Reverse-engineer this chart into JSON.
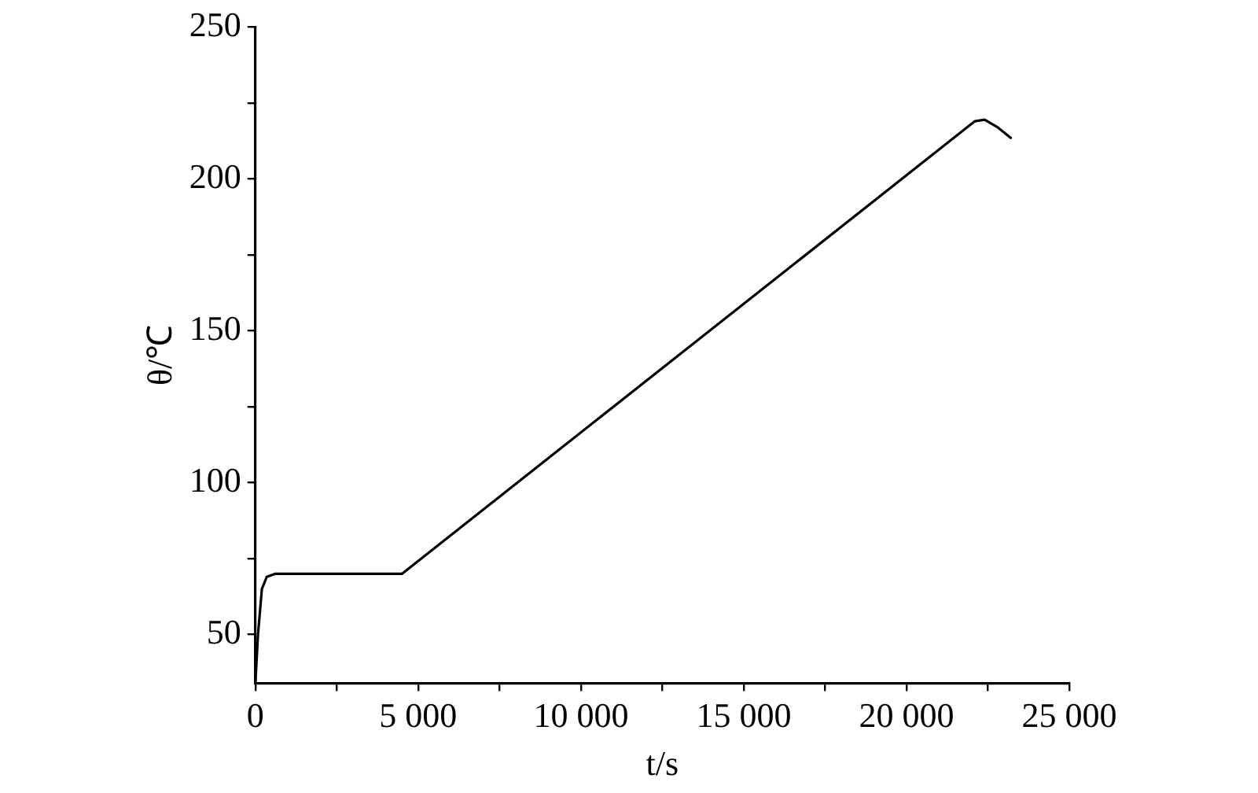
{
  "chart_data": {
    "type": "line",
    "xlabel": "t/s",
    "ylabel": "θ/℃",
    "x": [
      0,
      80,
      200,
      350,
      600,
      4500,
      22100,
      22400,
      22800,
      23200
    ],
    "series": [
      {
        "color": "#000000",
        "values": [
          34,
          50,
          65,
          69,
          70,
          70,
          219,
          219.5,
          217,
          213.5
        ]
      }
    ],
    "xlim": [
      0,
      25000
    ],
    "xticks": [
      0,
      {
        "value": 2500,
        "label": null
      },
      {
        "value": 5000,
        "label": "5 000"
      },
      {
        "value": 7500,
        "label": null
      },
      {
        "value": 10000,
        "label": "10 000"
      },
      {
        "value": 12500,
        "label": null
      },
      {
        "value": 15000,
        "label": "15 000"
      },
      {
        "value": 17500,
        "label": null
      },
      {
        "value": 20000,
        "label": "20 000"
      },
      {
        "value": 22500,
        "label": null
      },
      {
        "value": 25000,
        "label": "25 000"
      }
    ],
    "ylim": [
      34,
      250
    ],
    "yticks": [
      50,
      {
        "value": 75,
        "label": null
      },
      100,
      {
        "value": 125,
        "label": null
      },
      150,
      {
        "value": 175,
        "label": null
      },
      200,
      {
        "value": 225,
        "label": null
      },
      250
    ],
    "grid": false,
    "legend": false,
    "marker": "none",
    "line_style": "solid"
  }
}
